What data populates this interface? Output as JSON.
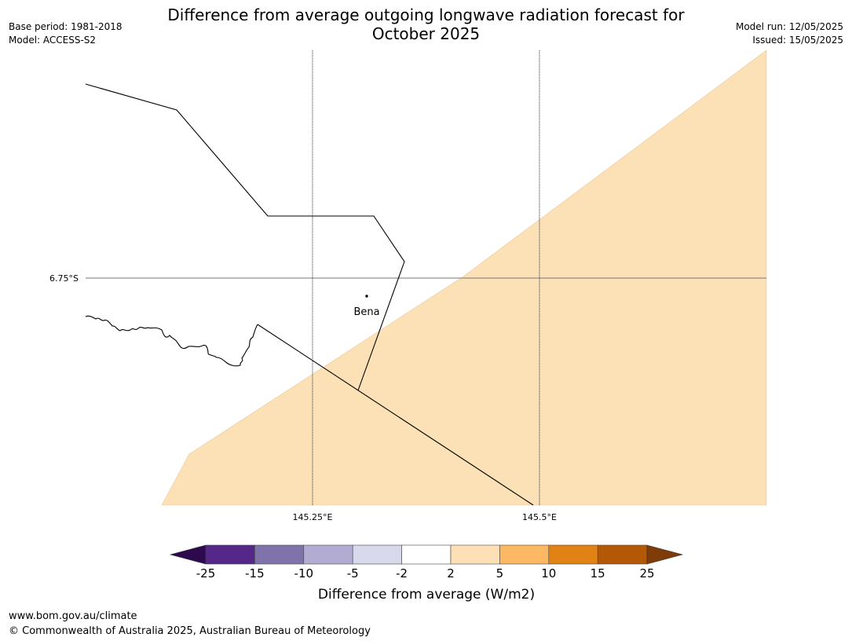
{
  "title_line1": "Difference from average outgoing longwave radiation forecast for",
  "title_line2": "October 2025",
  "meta_left": [
    "Base period: 1981-2018",
    "Model: ACCESS-S2"
  ],
  "meta_right": [
    "Model run: 12/05/2025",
    "Issued: 15/05/2025"
  ],
  "map": {
    "latitude_label": "6.75°S",
    "longitude_labels": [
      "145.25°E",
      "145.5°E"
    ],
    "place": "Bena",
    "anomaly_fill_color": "#fce0b6"
  },
  "colorbar": {
    "label": "Difference from average (W/m2)",
    "ticks": [
      "-25",
      "-15",
      "-10",
      "-5",
      "-2",
      "2",
      "5",
      "10",
      "15",
      "25"
    ],
    "under_color": "#2d0a4e",
    "over_color": "#7f3b08",
    "colors": [
      "#542788",
      "#8073ac",
      "#b2abd2",
      "#d8daeb",
      "#ffffff",
      "#fee0b6",
      "#fdb863",
      "#e08214",
      "#b35806"
    ]
  },
  "footer": [
    "www.bom.gov.au/climate",
    "© Commonwealth of Australia 2025, Australian Bureau of Meteorology"
  ]
}
